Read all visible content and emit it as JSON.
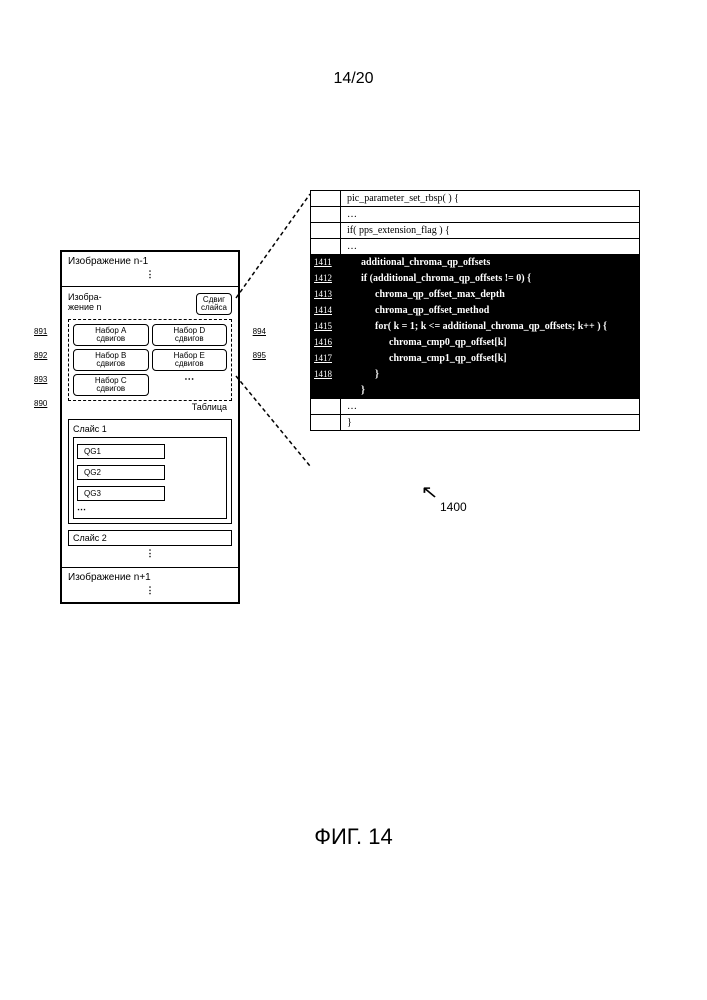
{
  "page_number": "14/20",
  "figure_caption": "ФИГ. 14",
  "ref_num": "1400",
  "left": {
    "prev_image": "Изображение n-1",
    "next_image": "Изображение n+1",
    "image_n": "Изобра-\nжение n",
    "slice_shift": "Сдвиг\nслайса",
    "table_label": "Таблица",
    "table_ref": "890",
    "sets": [
      {
        "ref": "891",
        "label": "Набор A\nсдвигов"
      },
      {
        "ref": "892",
        "label": "Набор B\nсдвигов"
      },
      {
        "ref": "893",
        "label": "Набор C\nсдвигов"
      },
      {
        "ref": "894",
        "label": "Набор D\nсдвигов"
      },
      {
        "ref": "895",
        "label": "Набор E\nсдвигов"
      }
    ],
    "slice1": "Слайс 1",
    "qg": [
      "QG1",
      "QG2",
      "QG3"
    ],
    "slice2": "Слайс 2"
  },
  "syntax": {
    "rows": [
      {
        "num": "",
        "hl": false,
        "indent": 0,
        "text": "pic_parameter_set_rbsp( ) {"
      },
      {
        "num": "",
        "hl": false,
        "indent": 0,
        "text": "…"
      },
      {
        "num": "",
        "hl": false,
        "indent": 0,
        "text": "if( pps_extension_flag ) {"
      },
      {
        "num": "",
        "hl": false,
        "indent": 0,
        "text": "…"
      },
      {
        "num": "1411",
        "hl": true,
        "indent": 1,
        "text": "additional_chroma_qp_offsets"
      },
      {
        "num": "1412",
        "hl": true,
        "indent": 1,
        "text": "if (additional_chroma_qp_offsets != 0) {"
      },
      {
        "num": "1413",
        "hl": true,
        "indent": 2,
        "text": "chroma_qp_offset_max_depth"
      },
      {
        "num": "1414",
        "hl": true,
        "indent": 2,
        "text": "chroma_qp_offset_method"
      },
      {
        "num": "1415",
        "hl": true,
        "indent": 2,
        "text": "for( k = 1; k <= additional_chroma_qp_offsets; k++ ) {"
      },
      {
        "num": "1416",
        "hl": true,
        "indent": 3,
        "text": "chroma_cmp0_qp_offset[k]"
      },
      {
        "num": "1417",
        "hl": true,
        "indent": 3,
        "text": "chroma_cmp1_qp_offset[k]"
      },
      {
        "num": "1418",
        "hl": true,
        "indent": 2,
        "text": "}"
      },
      {
        "num": "",
        "hl": true,
        "indent": 1,
        "text": "}"
      },
      {
        "num": "",
        "hl": false,
        "indent": 0,
        "text": "…"
      },
      {
        "num": "",
        "hl": false,
        "indent": 0,
        "text": "}"
      }
    ]
  },
  "colors": {
    "bg": "#ffffff",
    "fg": "#000000",
    "highlight_bg": "#000000",
    "highlight_fg": "#ffffff"
  }
}
